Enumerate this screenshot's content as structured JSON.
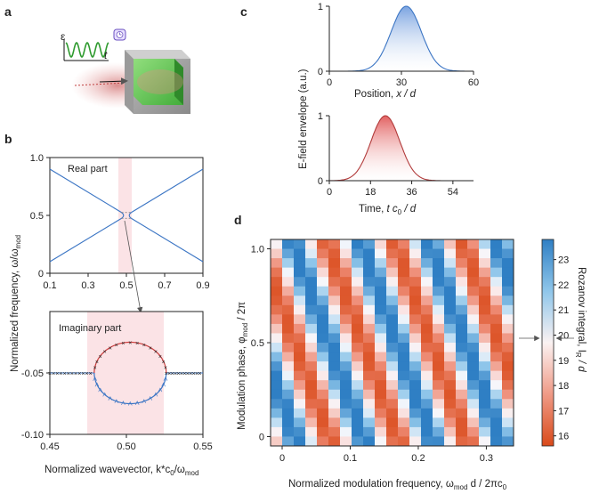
{
  "panels": {
    "a": "a",
    "b": "b",
    "c": "c",
    "d": "d"
  },
  "panel_a": {
    "epsilon": "ε",
    "t": "t"
  },
  "colors": {
    "axis": "#222222",
    "curve_blue": "#3b75c4",
    "curve_red": "#cc3d3d",
    "pink_band": "#fbe3e6",
    "green_wave": "#2e9a2e"
  },
  "chart_data": [
    {
      "id": "b-real",
      "type": "line",
      "title": "Real part",
      "xlabel": "",
      "ylabel": "",
      "xlim": [
        0.1,
        0.9
      ],
      "ylim": [
        0,
        1.0
      ],
      "xticks": [
        "0.1",
        "0.3",
        "0.5",
        "0.7",
        "0.9"
      ],
      "yticks": [
        "0",
        "0.5",
        "1.0"
      ],
      "gap_center": 0.5,
      "gap_halfwidth": 0.025,
      "series": [
        {
          "name": "lower branch",
          "x": [
            0.1,
            0.475
          ],
          "y": [
            0.1,
            0.475
          ]
        },
        {
          "name": "upper branch",
          "x": [
            0.1,
            0.475
          ],
          "y": [
            0.9,
            0.525
          ]
        }
      ]
    },
    {
      "id": "b-imag",
      "type": "line",
      "title": "Imaginary part",
      "xlim": [
        0.45,
        0.55
      ],
      "ylim": [
        -0.1,
        0.0
      ],
      "xticks": [
        "0.45",
        "0.50",
        "0.55"
      ],
      "yticks": [
        "-0.05",
        "-0.10"
      ],
      "baseline": -0.05,
      "ellipse_center": [
        0.5025,
        -0.05
      ],
      "ellipse_halfwidth": 0.0235,
      "ellipse_halfheight": 0.025
    },
    {
      "id": "c-position",
      "type": "area",
      "xlabel": "Position, x / d",
      "xlim": [
        0,
        60
      ],
      "ylim": [
        0,
        1
      ],
      "xticks": [
        "0",
        "30",
        "60"
      ],
      "yticks": [
        "0",
        "1"
      ],
      "peak": 32,
      "sigma": 6.3
    },
    {
      "id": "c-time",
      "type": "area",
      "xlabel": "Time, t c0 / d",
      "xlim": [
        0,
        63
      ],
      "ylim": [
        0,
        1
      ],
      "xticks": [
        "0",
        "18",
        "36",
        "54"
      ],
      "yticks": [
        "0",
        "1"
      ],
      "peak": 24.5,
      "sigma": 6.3
    },
    {
      "id": "d-heatmap",
      "type": "heatmap",
      "xlabel": "Normalized modulation frequency, ω_mod d / 2πc0",
      "ylabel": "Modulation phase, φ_mod / 2π",
      "xlim": [
        -0.017,
        0.34
      ],
      "ylim": [
        -0.05,
        1.05
      ],
      "xticks": [
        "0",
        "0.1",
        "0.2",
        "0.3"
      ],
      "yticks": [
        "0",
        "0.5",
        "1.0"
      ],
      "cols": 21,
      "rows": 22,
      "stripe_period": 0.1,
      "stripe_slope": -0.1,
      "min": 15.8,
      "max": 23.6,
      "mid": 20
    },
    {
      "id": "d-colorbar",
      "type": "colorbar",
      "ticks": [
        "16",
        "17",
        "18",
        "19",
        "20",
        "21",
        "22",
        "23"
      ],
      "vmin": 15.6,
      "vmax": 23.8
    }
  ],
  "labels": {
    "b_y": "Normalized frequency, ω/ω",
    "b_y_sub": "mod",
    "b_x": "Normalized wavevector, k*c",
    "b_x_sub0": "0",
    "b_x_mid": "/ω",
    "b_x_sub1": "mod",
    "c_y": "E-field envelope (a.u.)",
    "c_x1_a": "Position, ",
    "c_x1_b": "x / d",
    "c_x2_a": "Time, ",
    "c_x2_b": "t c",
    "c_x2_sub": "0",
    "c_x2_c": " / d",
    "d_y_a": "Modulation phase, φ",
    "d_y_sub": "mod",
    "d_y_b": " / 2π",
    "d_x_a": "Normalized modulation frequency, ω",
    "d_x_sub": "mod",
    "d_x_b": " d / 2πc",
    "d_x_sub2": "0",
    "cb_label_a": "Rozanov integral, I",
    "cb_label_sub": "R",
    "cb_label_b": " / d"
  }
}
